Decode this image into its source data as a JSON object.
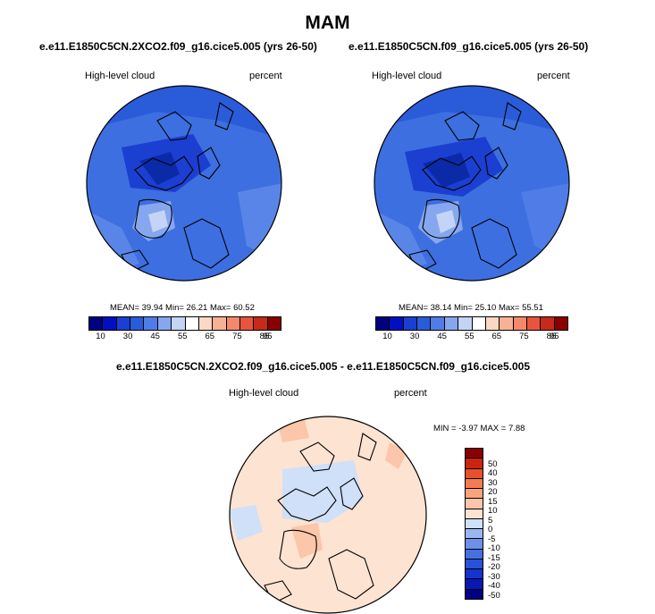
{
  "page_title": "MAM",
  "colormap_abs": [
    "#000080",
    "#0010c0",
    "#1a3fd1",
    "#2a5cd9",
    "#4f7ce6",
    "#86a7ef",
    "#c3d4f7",
    "#ffffff",
    "#fbd8c4",
    "#f7b295",
    "#f3886a",
    "#e8553c",
    "#c52a1a",
    "#8a0000"
  ],
  "colormap_diff": [
    "#000080",
    "#0a18b3",
    "#1533cf",
    "#2a52d8",
    "#4670e0",
    "#6d91e8",
    "#9ab5f0",
    "#cfe0f8",
    "#fde3d2",
    "#fbc6a9",
    "#f8a47e",
    "#f47c52",
    "#e8502b",
    "#c9250f",
    "#8a0000"
  ],
  "panels": [
    {
      "run": "e.e11.E1850C5CN.2XCO2.f09_g16.cice5.005 (yrs 26-50)",
      "variable": "High-level cloud",
      "units": "percent",
      "stats": "MEAN=  39.94  Min=  26.21  Max=  60.52",
      "labels": [
        "10",
        "30",
        "45",
        "55",
        "65",
        "75",
        "85",
        "95"
      ]
    },
    {
      "run": "e.e11.E1850C5CN.f09_g16.cice5.005 (yrs 26-50)",
      "variable": "High-level cloud",
      "units": "percent",
      "stats": "MEAN=  38.14  Min=  25.10  Max=  55.51",
      "labels": [
        "10",
        "30",
        "45",
        "55",
        "65",
        "75",
        "85",
        "95"
      ]
    }
  ],
  "diff": {
    "title": "e.e11.E1850C5CN.2XCO2.f09_g16.cice5.005 - e.e11.E1850C5CN.f09_g16.cice5.005",
    "variable": "High-level cloud",
    "units": "percent",
    "stats": "MIN =  -3.97 MAX =   7.88",
    "labels": [
      "50",
      "40",
      "30",
      "20",
      "15",
      "10",
      "5",
      "0",
      "-5",
      "-10",
      "-15",
      "-20",
      "-30",
      "-40",
      "-50"
    ]
  }
}
